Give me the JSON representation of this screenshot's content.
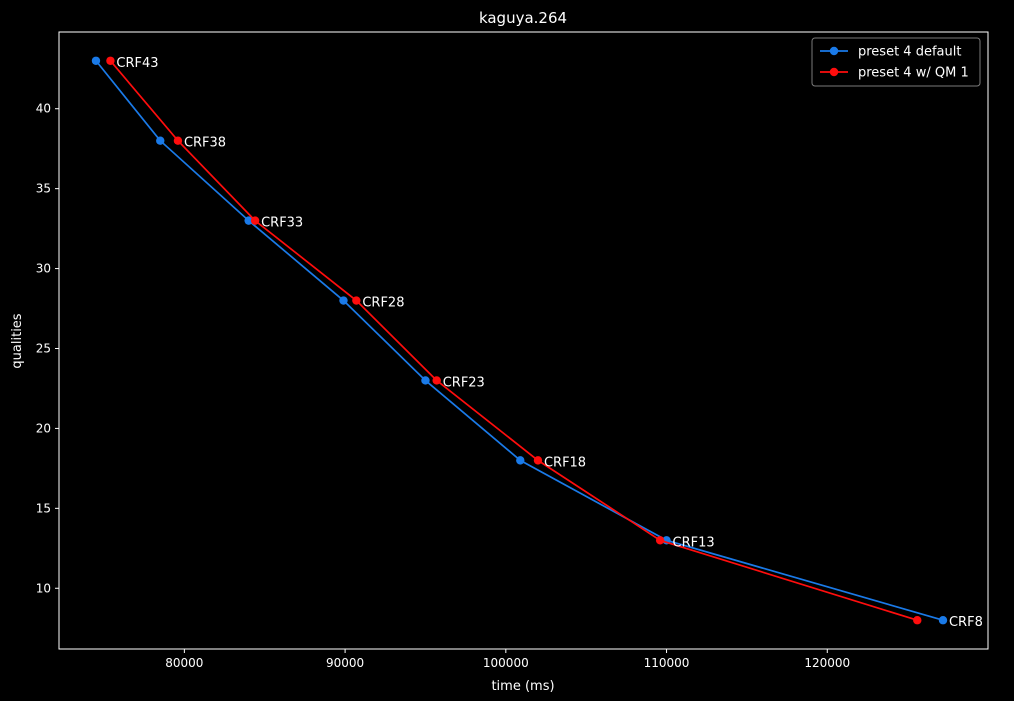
{
  "chart_data": {
    "type": "line",
    "title": "kaguya.264",
    "xlabel": "time (ms)",
    "ylabel": "qualities",
    "xlim": [
      72200,
      130000
    ],
    "ylim": [
      6.2,
      44.8
    ],
    "xticks": [
      80000,
      90000,
      100000,
      110000,
      120000
    ],
    "yticks": [
      10,
      15,
      20,
      25,
      30,
      35,
      40
    ],
    "grid": false,
    "legend_position": "top-right",
    "background": "#000000",
    "foreground": "#ffffff",
    "series": [
      {
        "name": "preset 4 default",
        "color": "#1a7ae8",
        "points": [
          {
            "x": 74500,
            "y": 43
          },
          {
            "x": 78500,
            "y": 38
          },
          {
            "x": 84000,
            "y": 33
          },
          {
            "x": 89900,
            "y": 28
          },
          {
            "x": 95000,
            "y": 23
          },
          {
            "x": 100900,
            "y": 18
          },
          {
            "x": 110000,
            "y": 13
          },
          {
            "x": 127200,
            "y": 8
          }
        ]
      },
      {
        "name": "preset 4 w/ QM 1",
        "color": "#ff0d0d",
        "points": [
          {
            "x": 75400,
            "y": 43
          },
          {
            "x": 79600,
            "y": 38
          },
          {
            "x": 84400,
            "y": 33
          },
          {
            "x": 90700,
            "y": 28
          },
          {
            "x": 95700,
            "y": 23
          },
          {
            "x": 102000,
            "y": 18
          },
          {
            "x": 109600,
            "y": 13
          },
          {
            "x": 125600,
            "y": 8
          }
        ]
      }
    ],
    "annotations": [
      {
        "text": "CRF43",
        "x": 75400,
        "y": 43
      },
      {
        "text": "CRF38",
        "x": 79600,
        "y": 38
      },
      {
        "text": "CRF33",
        "x": 84400,
        "y": 33
      },
      {
        "text": "CRF28",
        "x": 90700,
        "y": 28
      },
      {
        "text": "CRF23",
        "x": 95700,
        "y": 23
      },
      {
        "text": "CRF18",
        "x": 102000,
        "y": 18
      },
      {
        "text": "CRF13",
        "x": 110000,
        "y": 13
      },
      {
        "text": "CRF8",
        "x": 127200,
        "y": 8
      }
    ]
  }
}
